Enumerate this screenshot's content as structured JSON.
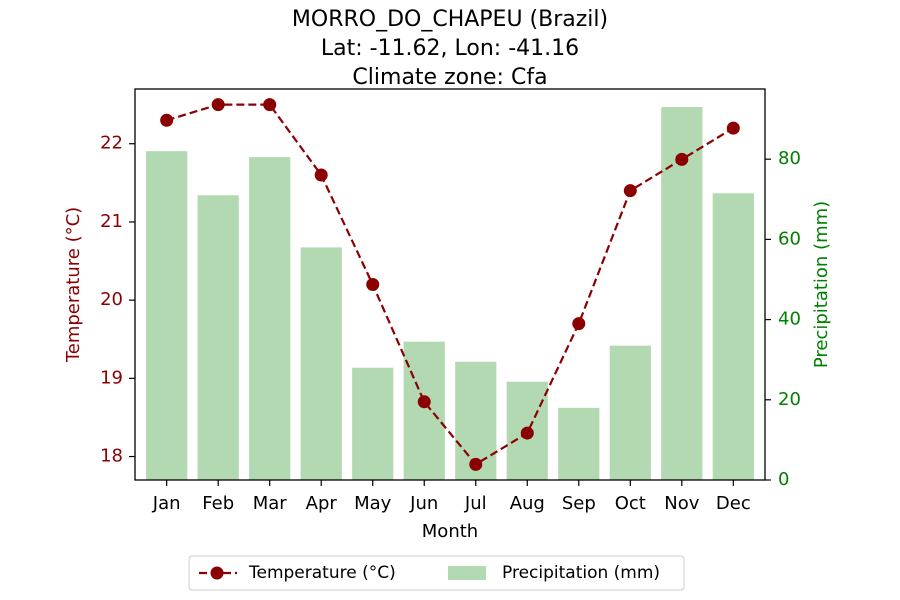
{
  "chart_data": {
    "type": "bar+line",
    "title_lines": [
      "MORRO_DO_CHAPEU (Brazil)",
      "Lat: -11.62, Lon: -41.16",
      "Climate zone: Cfa"
    ],
    "xlabel": "Month",
    "ylabel_left": "Temperature (°C)",
    "ylabel_right": "Precipitation (mm)",
    "categories": [
      "Jan",
      "Feb",
      "Mar",
      "Apr",
      "May",
      "Jun",
      "Jul",
      "Aug",
      "Sep",
      "Oct",
      "Nov",
      "Dec"
    ],
    "temperature": {
      "name": "Temperature (°C)",
      "values": [
        22.3,
        22.5,
        22.5,
        21.6,
        20.2,
        18.7,
        17.9,
        18.3,
        19.7,
        21.4,
        21.8,
        22.2
      ],
      "color": "#8b0000",
      "ylim": [
        17.7,
        22.7
      ],
      "ticks": [
        18,
        19,
        20,
        21,
        22
      ]
    },
    "precipitation": {
      "name": "Precipitation (mm)",
      "values": [
        82,
        71,
        80.5,
        58,
        28,
        34.5,
        29.5,
        24.5,
        18,
        33.5,
        93,
        71.5
      ],
      "color": "#b2d9b2",
      "ylim": [
        0,
        97.5
      ],
      "ticks": [
        0,
        20,
        40,
        60,
        80
      ]
    },
    "legend_position": "bottom-center",
    "grid": false,
    "axis_colors": {
      "left": "#8b0000",
      "right": "#008000"
    }
  }
}
